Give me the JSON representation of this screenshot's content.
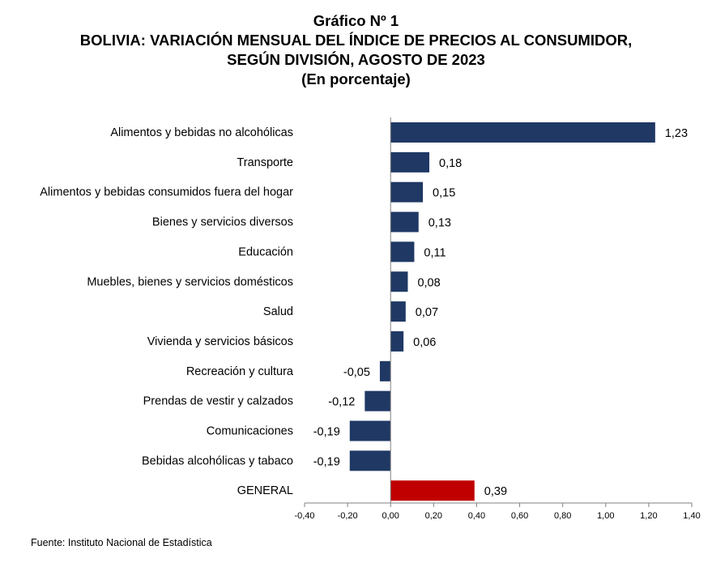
{
  "chart_data": {
    "type": "bar",
    "orientation": "horizontal",
    "title": "Gráfico Nº 1",
    "subtitle_lines": [
      "BOLIVIA: VARIACIÓN MENSUAL DEL ÍNDICE DE PRECIOS AL CONSUMIDOR,",
      "SEGÚN DIVISIÓN, AGOSTO DE 2023",
      "(En porcentaje)"
    ],
    "categories": [
      "Alimentos y bebidas no alcohólicas",
      "Transporte",
      "Alimentos y bebidas consumidos fuera del hogar",
      "Bienes y servicios diversos",
      "Educación",
      "Muebles, bienes y servicios domésticos",
      "Salud",
      "Vivienda y servicios básicos",
      "Recreación y cultura",
      "Prendas de vestir y calzados",
      "Comunicaciones",
      "Bebidas alcohólicas y tabaco",
      "GENERAL"
    ],
    "values": [
      1.23,
      0.18,
      0.15,
      0.13,
      0.11,
      0.08,
      0.07,
      0.06,
      -0.05,
      -0.12,
      -0.19,
      -0.19,
      0.39
    ],
    "value_labels": [
      "1,23",
      "0,18",
      "0,15",
      "0,13",
      "0,11",
      "0,08",
      "0,07",
      "0,06",
      "-0,05",
      "-0,12",
      "-0,19",
      "-0,19",
      "0,39"
    ],
    "xlim": [
      -0.4,
      1.4
    ],
    "x_ticks": [
      -0.4,
      -0.2,
      0,
      0.2,
      0.4,
      0.6,
      0.8,
      1.0,
      1.2,
      1.4
    ],
    "x_tick_labels": [
      "-0,40",
      "-0,20",
      "0,00",
      "0,20",
      "0,40",
      "0,60",
      "0,80",
      "1,00",
      "1,20",
      "1,40"
    ],
    "grid": false,
    "legend": "none",
    "colors": {
      "default_bar": "#1f3864",
      "general_bar": "#c00000",
      "axis": "#808080"
    },
    "highlight_category": "GENERAL"
  },
  "footer": {
    "source": "Fuente: Instituto Nacional de Estadística"
  }
}
